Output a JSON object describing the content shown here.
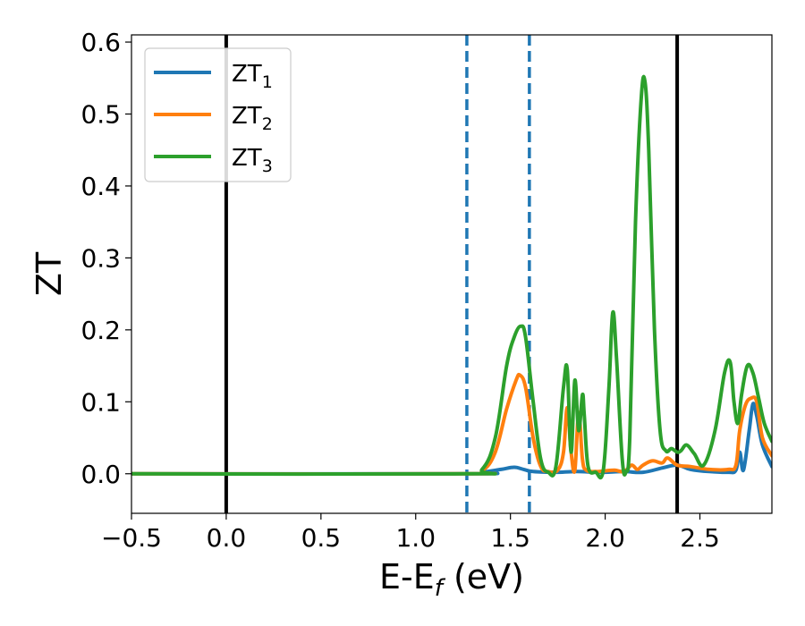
{
  "chart_data": {
    "type": "line",
    "xlabel": "E-E",
    "xlabel_sub": "f",
    "xlabel_unit": " (eV)",
    "ylabel": "ZT",
    "xlim": [
      -0.5,
      2.88
    ],
    "ylim": [
      -0.055,
      0.61
    ],
    "xticks": [
      -0.5,
      0.0,
      0.5,
      1.0,
      1.5,
      2.0,
      2.5
    ],
    "xtick_labels": [
      "−0.5",
      "0.0",
      "0.5",
      "1.0",
      "1.5",
      "2.0",
      "2.5"
    ],
    "yticks": [
      0.0,
      0.1,
      0.2,
      0.3,
      0.4,
      0.5,
      0.6
    ],
    "ytick_labels": [
      "0.0",
      "0.1",
      "0.2",
      "0.3",
      "0.4",
      "0.5",
      "0.6"
    ],
    "grid": false,
    "legend_position": "top-left",
    "vertical_lines": [
      {
        "x": 0.0,
        "style": "solid",
        "color": "#000000"
      },
      {
        "x": 1.27,
        "style": "dashed",
        "color": "#1f77b4"
      },
      {
        "x": 1.6,
        "style": "dashed",
        "color": "#1f77b4"
      },
      {
        "x": 2.38,
        "style": "solid",
        "color": "#000000"
      }
    ],
    "series": [
      {
        "name": "ZT",
        "name_sub": "1",
        "color": "#1f77b4",
        "x": [
          -0.5,
          1.27,
          1.35,
          1.45,
          1.52,
          1.57,
          1.62,
          1.75,
          1.85,
          1.95,
          2.0,
          2.1,
          2.2,
          2.3,
          2.38,
          2.45,
          2.55,
          2.65,
          2.69,
          2.71,
          2.73,
          2.76,
          2.78,
          2.8,
          2.83,
          2.88
        ],
        "y": [
          0.0,
          0.0,
          0.002,
          0.006,
          0.009,
          0.006,
          0.003,
          0.002,
          0.003,
          0.002,
          0.002,
          0.003,
          0.002,
          0.008,
          0.012,
          0.006,
          0.003,
          0.002,
          0.005,
          0.03,
          0.005,
          0.06,
          0.097,
          0.08,
          0.04,
          0.01
        ]
      },
      {
        "name": "ZT",
        "name_sub": "2",
        "color": "#ff7f0e",
        "x": [
          -0.5,
          1.25,
          1.35,
          1.42,
          1.48,
          1.53,
          1.55,
          1.58,
          1.62,
          1.66,
          1.7,
          1.75,
          1.78,
          1.8,
          1.82,
          1.84,
          1.86,
          1.88,
          1.9,
          1.95,
          2.0,
          2.05,
          2.1,
          2.14,
          2.17,
          2.2,
          2.25,
          2.3,
          2.33,
          2.38,
          2.45,
          2.55,
          2.65,
          2.69,
          2.71,
          2.74,
          2.77,
          2.8,
          2.83,
          2.88
        ],
        "y": [
          0.0,
          0.0,
          0.004,
          0.03,
          0.09,
          0.13,
          0.137,
          0.12,
          0.05,
          0.01,
          0.003,
          0.005,
          0.03,
          0.092,
          0.03,
          0.005,
          0.085,
          0.02,
          0.005,
          0.003,
          0.004,
          0.005,
          0.003,
          0.012,
          0.006,
          0.012,
          0.018,
          0.015,
          0.022,
          0.012,
          0.01,
          0.006,
          0.006,
          0.012,
          0.06,
          0.095,
          0.105,
          0.1,
          0.05,
          0.025
        ]
      },
      {
        "name": "ZT",
        "name_sub": "3",
        "color": "#2ca02c",
        "x": [
          -0.5,
          1.25,
          1.35,
          1.42,
          1.48,
          1.52,
          1.555,
          1.58,
          1.62,
          1.66,
          1.7,
          1.74,
          1.78,
          1.8,
          1.82,
          1.84,
          1.86,
          1.88,
          1.89,
          1.91,
          1.95,
          1.99,
          2.02,
          2.04,
          2.06,
          2.09,
          2.11,
          2.13,
          2.16,
          2.19,
          2.21,
          2.23,
          2.26,
          2.29,
          2.32,
          2.35,
          2.38,
          2.4,
          2.43,
          2.47,
          2.52,
          2.58,
          2.63,
          2.66,
          2.68,
          2.7,
          2.72,
          2.75,
          2.78,
          2.81,
          2.84,
          2.88
        ],
        "y": [
          0.0,
          0.0,
          0.006,
          0.05,
          0.15,
          0.19,
          0.205,
          0.19,
          0.1,
          0.02,
          0.002,
          0.01,
          0.12,
          0.145,
          0.03,
          0.13,
          0.06,
          0.11,
          0.08,
          0.01,
          0.002,
          0.005,
          0.12,
          0.224,
          0.16,
          0.02,
          0.003,
          0.05,
          0.35,
          0.52,
          0.545,
          0.45,
          0.2,
          0.06,
          0.032,
          0.035,
          0.03,
          0.032,
          0.04,
          0.028,
          0.012,
          0.06,
          0.14,
          0.155,
          0.1,
          0.07,
          0.11,
          0.15,
          0.14,
          0.105,
          0.07,
          0.045
        ]
      }
    ]
  }
}
